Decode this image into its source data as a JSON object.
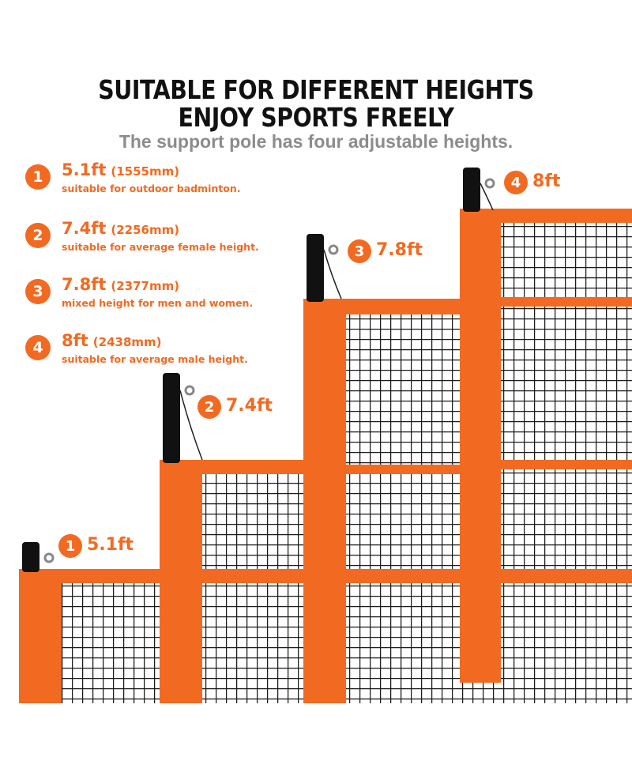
{
  "header": {
    "title_line1": "SUITABLE FOR DIFFERENT HEIGHTS",
    "title_line2": "ENJOY SPORTS FREELY",
    "subtitle": "The support pole has four adjustable heights."
  },
  "specs": [
    {
      "number": "1",
      "height_ft": "5.1ft",
      "height_mm": "(1555mm)",
      "description": "suitable for outdoor badminton."
    },
    {
      "number": "2",
      "height_ft": "7.4ft",
      "height_mm": "(2256mm)",
      "description": "suitable for average female height."
    },
    {
      "number": "3",
      "height_ft": "7.8ft",
      "height_mm": "(2377mm)",
      "description": "mixed height for men and women."
    },
    {
      "number": "4",
      "height_ft": "8ft",
      "height_mm": "(2438mm)",
      "description": "suitable for average male height."
    }
  ],
  "callouts": [
    {
      "number": "1",
      "label": "5.1ft"
    },
    {
      "number": "2",
      "label": "7.4ft"
    },
    {
      "number": "3",
      "label": "7.8ft"
    },
    {
      "number": "4",
      "label": "8ft"
    }
  ],
  "colors": {
    "accent": "#f26a21",
    "net": "#1a1a1a",
    "pole": "#111111",
    "subtitle": "#8c8c8c"
  }
}
